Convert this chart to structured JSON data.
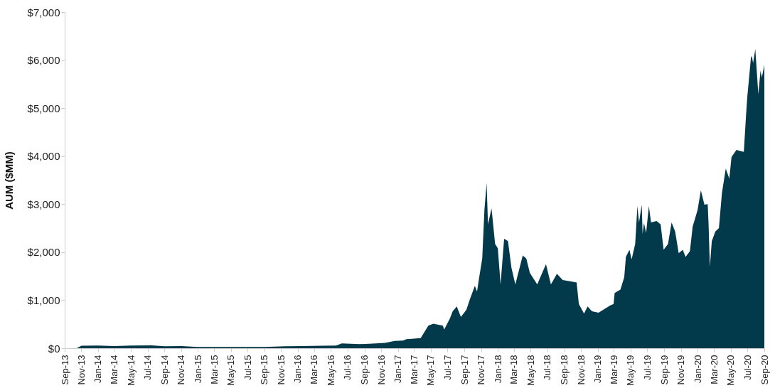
{
  "chart_data": {
    "type": "area",
    "ylabel": "AUM ($MM)",
    "grid": false,
    "xlim": [
      "2013-09-01",
      "2020-09-01"
    ],
    "xticks": [
      {
        "value": "2013-09-01",
        "label": "Sep-13"
      },
      {
        "value": "2013-11-01",
        "label": "Nov-13"
      },
      {
        "value": "2014-01-01",
        "label": "Jan-14"
      },
      {
        "value": "2014-03-01",
        "label": "Mar-14"
      },
      {
        "value": "2014-05-01",
        "label": "May-14"
      },
      {
        "value": "2014-07-01",
        "label": "Jul-14"
      },
      {
        "value": "2014-09-01",
        "label": "Sep-14"
      },
      {
        "value": "2014-11-01",
        "label": "Nov-14"
      },
      {
        "value": "2015-01-01",
        "label": "Jan-15"
      },
      {
        "value": "2015-03-01",
        "label": "Mar-15"
      },
      {
        "value": "2015-05-01",
        "label": "May-15"
      },
      {
        "value": "2015-07-01",
        "label": "Jul-15"
      },
      {
        "value": "2015-09-01",
        "label": "Sep-15"
      },
      {
        "value": "2015-11-01",
        "label": "Nov-15"
      },
      {
        "value": "2016-01-01",
        "label": "Jan-16"
      },
      {
        "value": "2016-03-01",
        "label": "Mar-16"
      },
      {
        "value": "2016-05-01",
        "label": "May-16"
      },
      {
        "value": "2016-07-01",
        "label": "Jul-16"
      },
      {
        "value": "2016-09-01",
        "label": "Sep-16"
      },
      {
        "value": "2016-11-01",
        "label": "Nov-16"
      },
      {
        "value": "2017-01-01",
        "label": "Jan-17"
      },
      {
        "value": "2017-03-01",
        "label": "Mar-17"
      },
      {
        "value": "2017-05-01",
        "label": "May-17"
      },
      {
        "value": "2017-07-01",
        "label": "Jul-17"
      },
      {
        "value": "2017-09-01",
        "label": "Sep-17"
      },
      {
        "value": "2017-11-01",
        "label": "Nov-17"
      },
      {
        "value": "2018-01-01",
        "label": "Jan-18"
      },
      {
        "value": "2018-03-01",
        "label": "Mar-18"
      },
      {
        "value": "2018-05-01",
        "label": "May-18"
      },
      {
        "value": "2018-07-01",
        "label": "Jul-18"
      },
      {
        "value": "2018-09-01",
        "label": "Sep-18"
      },
      {
        "value": "2018-11-01",
        "label": "Nov-18"
      },
      {
        "value": "2019-01-01",
        "label": "Jan-19"
      },
      {
        "value": "2019-03-01",
        "label": "Mar-19"
      },
      {
        "value": "2019-05-01",
        "label": "May-19"
      },
      {
        "value": "2019-07-01",
        "label": "Jul-19"
      },
      {
        "value": "2019-09-01",
        "label": "Sep-19"
      },
      {
        "value": "2019-11-01",
        "label": "Nov-19"
      },
      {
        "value": "2020-01-01",
        "label": "Jan-20"
      },
      {
        "value": "2020-03-01",
        "label": "Mar-20"
      },
      {
        "value": "2020-05-01",
        "label": "May-20"
      },
      {
        "value": "2020-07-01",
        "label": "Jul-20"
      },
      {
        "value": "2020-09-01",
        "label": "Sep-20"
      }
    ],
    "ylim": [
      0,
      7000
    ],
    "yticks": [
      {
        "value": 0,
        "label": "$0"
      },
      {
        "value": 1000,
        "label": "$1,000"
      },
      {
        "value": 2000,
        "label": "$2,000"
      },
      {
        "value": 3000,
        "label": "$3,000"
      },
      {
        "value": 4000,
        "label": "$4,000"
      },
      {
        "value": 5000,
        "label": "$5,000"
      },
      {
        "value": 6000,
        "label": "$6,000"
      },
      {
        "value": 7000,
        "label": "$7,000"
      }
    ],
    "series": [
      {
        "color": "#033a4b",
        "x": [
          "2013-10-15",
          "2013-11-01",
          "2014-01-01",
          "2014-03-01",
          "2014-05-01",
          "2014-07-15",
          "2014-09-01",
          "2014-11-01",
          "2015-01-01",
          "2015-05-01",
          "2015-09-01",
          "2015-11-15",
          "2016-01-15",
          "2016-04-01",
          "2016-05-20",
          "2016-06-10",
          "2016-08-15",
          "2016-10-01",
          "2016-11-15",
          "2016-12-20",
          "2017-01-20",
          "2017-02-01",
          "2017-02-21",
          "2017-03-25",
          "2017-04-22",
          "2017-05-10",
          "2017-06-14",
          "2017-06-19",
          "2017-07-10",
          "2017-07-20",
          "2017-08-04",
          "2017-08-19",
          "2017-09-08",
          "2017-09-21",
          "2017-10-09",
          "2017-10-17",
          "2017-10-25",
          "2017-11-05",
          "2017-11-13",
          "2017-11-21",
          "2017-11-26",
          "2017-12-09",
          "2017-12-22",
          "2018-01-01",
          "2018-01-11",
          "2018-01-24",
          "2018-02-07",
          "2018-02-20",
          "2018-03-06",
          "2018-04-02",
          "2018-04-15",
          "2018-04-28",
          "2018-05-25",
          "2018-06-26",
          "2018-07-14",
          "2018-08-05",
          "2018-08-26",
          "2018-10-16",
          "2018-10-24",
          "2018-11-12",
          "2018-11-25",
          "2018-12-11",
          "2019-01-04",
          "2019-02-16",
          "2019-02-28",
          "2019-03-04",
          "2019-03-25",
          "2019-04-08",
          "2019-04-14",
          "2019-04-27",
          "2019-05-05",
          "2019-05-18",
          "2019-05-26",
          "2019-06-01",
          "2019-06-11",
          "2019-06-14",
          "2019-06-19",
          "2019-06-27",
          "2019-07-07",
          "2019-07-15",
          "2019-08-04",
          "2019-08-19",
          "2019-08-30",
          "2019-09-15",
          "2019-09-28",
          "2019-10-11",
          "2019-10-24",
          "2019-11-08",
          "2019-11-18",
          "2019-12-04",
          "2019-12-14",
          "2020-01-01",
          "2020-01-13",
          "2020-01-26",
          "2020-02-07",
          "2020-02-10",
          "2020-02-15",
          "2020-02-22",
          "2020-03-06",
          "2020-03-19",
          "2020-03-30",
          "2020-04-13",
          "2020-04-26",
          "2020-05-04",
          "2020-05-22",
          "2020-06-18",
          "2020-06-26",
          "2020-07-01",
          "2020-07-14",
          "2020-07-17",
          "2020-07-22",
          "2020-07-30",
          "2020-08-10",
          "2020-08-18",
          "2020-08-23",
          "2020-09-01"
        ],
        "values": [
          0,
          50,
          55,
          45,
          55,
          60,
          40,
          45,
          25,
          25,
          25,
          40,
          45,
          50,
          55,
          100,
          85,
          95,
          110,
          150,
          160,
          190,
          196,
          210,
          470,
          510,
          470,
          390,
          620,
          770,
          870,
          650,
          800,
          1020,
          1300,
          1180,
          1480,
          1870,
          2880,
          3440,
          2580,
          2910,
          2170,
          2080,
          1330,
          2280,
          2230,
          1670,
          1330,
          1930,
          1870,
          1570,
          1330,
          1750,
          1330,
          1550,
          1420,
          1370,
          920,
          720,
          870,
          770,
          740,
          890,
          920,
          1150,
          1220,
          1480,
          1900,
          2050,
          1850,
          2170,
          2960,
          2620,
          2990,
          2380,
          2610,
          2400,
          2960,
          2620,
          2650,
          2580,
          2050,
          2170,
          2620,
          2430,
          1980,
          2050,
          1900,
          2020,
          2530,
          2880,
          3290,
          2990,
          3000,
          2620,
          1700,
          2230,
          2430,
          2500,
          3230,
          3740,
          3530,
          3980,
          4130,
          4090,
          4840,
          5250,
          6050,
          6090,
          5940,
          6230,
          5290,
          5780,
          5640,
          5900
        ]
      }
    ]
  }
}
